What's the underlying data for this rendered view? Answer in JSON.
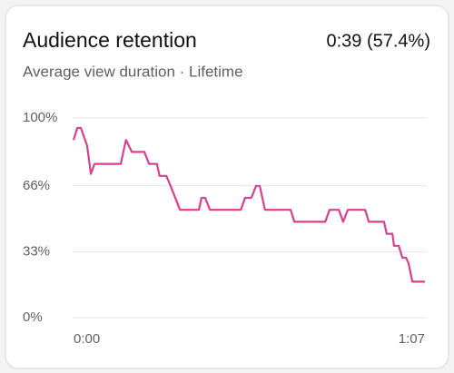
{
  "chart_data": {
    "type": "line",
    "title": "Audience retention",
    "headline": "0:39 (57.4%)",
    "subtitle": "Average view duration · Lifetime",
    "x": [
      0,
      0.7,
      1.4,
      2.6,
      3.3,
      4.0,
      9.0,
      10.0,
      11.1,
      13.5,
      14.4,
      15.9,
      16.4,
      17.7,
      18.5,
      20.3,
      23.9,
      24.4,
      25.1,
      26.0,
      31.9,
      32.7,
      33.9,
      34.8,
      35.5,
      36.5,
      41.4,
      42.1,
      48.0,
      48.8,
      50.6,
      51.4,
      52.3,
      55.6,
      56.3,
      59.2,
      59.7,
      60.8,
      61.1,
      62.0,
      62.7,
      63.4,
      63.9,
      64.6,
      67.0
    ],
    "series": [
      {
        "color": "#d4418e",
        "values": [
          89,
          95,
          95,
          86,
          72,
          77,
          77,
          89,
          83,
          83,
          77,
          77,
          71,
          71,
          66,
          54,
          54,
          60,
          60,
          54,
          54,
          60,
          60,
          66,
          66,
          54,
          54,
          48,
          48,
          54,
          54,
          48,
          54,
          54,
          48,
          48,
          42,
          42,
          36,
          36,
          30,
          30,
          27,
          18,
          18
        ]
      }
    ],
    "xlim": [
      0,
      67
    ],
    "xticks": [
      {
        "value": 0,
        "label": "0:00"
      },
      {
        "value": 67,
        "label": "1:07"
      }
    ],
    "ylim": [
      0,
      100
    ],
    "yticks": [
      {
        "value": 0,
        "label": "0%"
      },
      {
        "value": 33,
        "label": "33%"
      },
      {
        "value": 66,
        "label": "66%"
      },
      {
        "value": 100,
        "label": "100%"
      }
    ],
    "grid": true
  }
}
